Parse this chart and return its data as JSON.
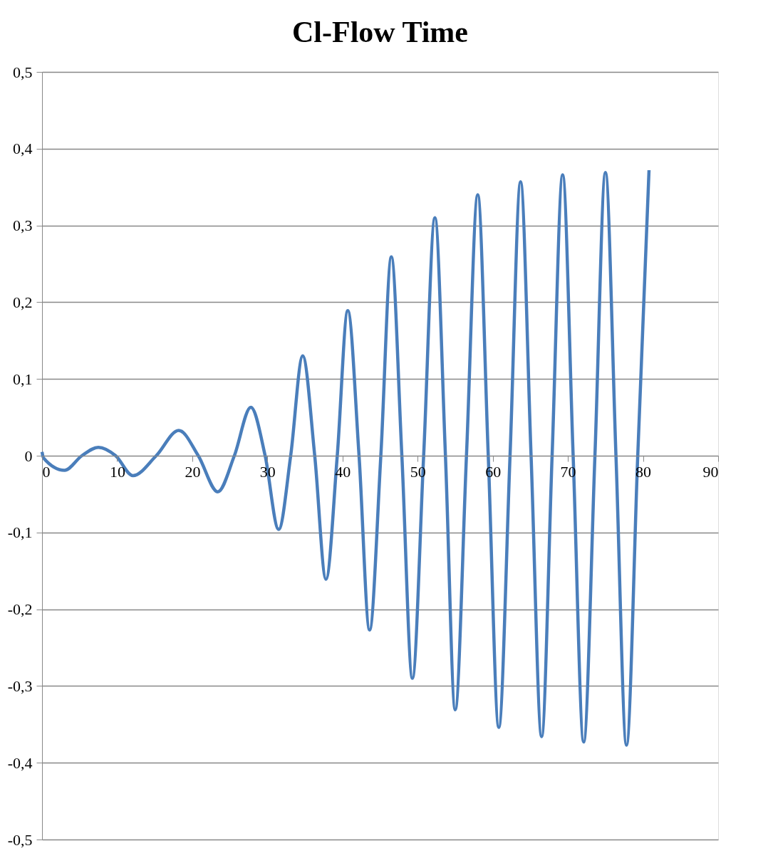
{
  "chart_data": {
    "type": "line",
    "title": "Cl-Flow Time",
    "x": [
      0,
      0.2,
      3.0,
      5.3,
      7.5,
      9.8,
      12.1,
      15.2,
      18.2,
      20.8,
      23.4,
      25.6,
      27.8,
      29.7,
      31.5,
      33.1,
      34.7,
      36.3,
      37.8,
      39.3,
      40.7,
      42.2,
      43.6,
      45.1,
      46.5,
      47.9,
      49.3,
      50.8,
      52.3,
      53.7,
      55.0,
      56.5,
      58.0,
      59.4,
      60.8,
      62.3,
      63.7,
      65.1,
      66.5,
      67.9,
      69.3,
      70.7,
      72.1,
      73.6,
      75.0,
      76.4,
      77.8,
      79.3,
      80.8
    ],
    "series": [
      {
        "color": "#4a7ebb",
        "values": [
          0.005,
          -0.003,
          -0.019,
          0,
          0.011,
          0,
          -0.026,
          0,
          0.033,
          0,
          -0.047,
          0,
          0.063,
          0,
          -0.096,
          0,
          0.13,
          0,
          -0.161,
          0,
          0.189,
          0,
          -0.227,
          0,
          0.259,
          0,
          -0.29,
          0,
          0.31,
          0,
          -0.331,
          0,
          0.34,
          0,
          -0.354,
          0,
          0.357,
          0,
          -0.366,
          0,
          0.366,
          0,
          -0.373,
          0,
          0.369,
          0,
          -0.377,
          0,
          0.372
        ]
      }
    ],
    "xlim": [
      0,
      90
    ],
    "xticks": [
      0,
      10,
      20,
      30,
      40,
      50,
      60,
      70,
      80,
      90
    ],
    "ylim": [
      -0.5,
      0.5
    ],
    "yticks": [
      {
        "value": -0.5,
        "label": "-0,5"
      },
      {
        "value": -0.4,
        "label": "-0,4"
      },
      {
        "value": -0.3,
        "label": "-0,3"
      },
      {
        "value": -0.2,
        "label": "-0,2"
      },
      {
        "value": -0.1,
        "label": "-0,1"
      },
      0,
      {
        "value": 0.1,
        "label": "0,1"
      },
      {
        "value": 0.2,
        "label": "0,2"
      },
      {
        "value": 0.3,
        "label": "0,3"
      },
      {
        "value": 0.4,
        "label": "0,4"
      },
      {
        "value": 0.5,
        "label": "0,5"
      }
    ],
    "grid": "y",
    "marker": "none",
    "line_style": "solid"
  }
}
